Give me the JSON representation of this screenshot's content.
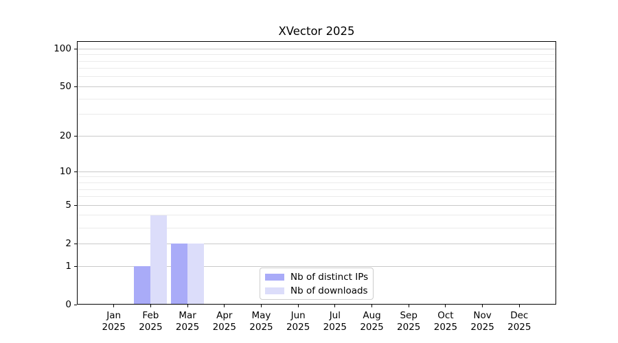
{
  "chart_data": {
    "type": "bar",
    "title": "XVector 2025",
    "categories": [
      "Jan",
      "Feb",
      "Mar",
      "Apr",
      "May",
      "Jun",
      "Jul",
      "Aug",
      "Sep",
      "Oct",
      "Nov",
      "Dec"
    ],
    "x_year": "2025",
    "series": [
      {
        "name": "Nb of distinct IPs",
        "color": "#a9abf8",
        "values": [
          0,
          1,
          2,
          0,
          0,
          0,
          0,
          0,
          0,
          0,
          0,
          0
        ]
      },
      {
        "name": "Nb of downloads",
        "color": "#dcddfa",
        "values": [
          0,
          4,
          2,
          0,
          0,
          0,
          0,
          0,
          0,
          0,
          0,
          0
        ]
      }
    ],
    "y_scale": "log1p",
    "y_ticks": [
      0,
      1,
      2,
      5,
      10,
      20,
      50,
      100
    ],
    "y_minor_gridlines": [
      3,
      4,
      6,
      7,
      8,
      9,
      30,
      40,
      60,
      70,
      80,
      90
    ],
    "ylim": [
      0,
      115
    ],
    "grid": true,
    "legend_position": "lower center",
    "colors": {
      "grid_major": "#c9c9c9",
      "grid_minor": "#ebebeb",
      "axis": "#000000",
      "text": "#000000",
      "legend_border": "#cccccc",
      "legend_bg": "#ffffff",
      "background": "#ffffff"
    }
  }
}
